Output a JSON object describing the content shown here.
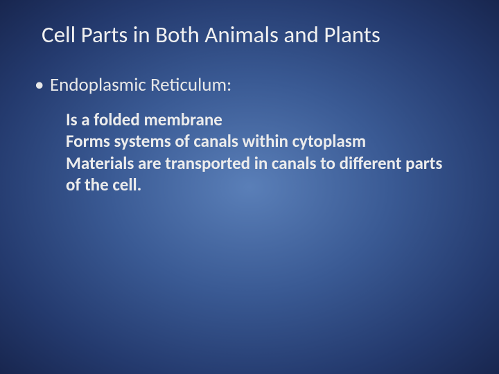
{
  "slide": {
    "title": "Cell Parts in Both Animals and Plants",
    "main_bullet": {
      "label": "Endoplasmic Reticulum:",
      "marker": "•"
    },
    "sub_bullets": [
      "Is a folded membrane",
      "Forms systems of canals within cytoplasm",
      "Materials are transported in canals to different parts of the cell."
    ],
    "styling": {
      "background_gradient_center": "#5a7fb8",
      "background_gradient_mid": "#3a5a94",
      "background_gradient_outer": "#243a6e",
      "background_gradient_edge": "#18264f",
      "title_color": "#f0f0f0",
      "text_color": "#e8e8e8",
      "title_fontsize": 33,
      "main_bullet_fontsize": 27,
      "sub_bullet_fontsize": 25,
      "sub_bullet_weight": 700,
      "font_family": "Calibri"
    }
  }
}
